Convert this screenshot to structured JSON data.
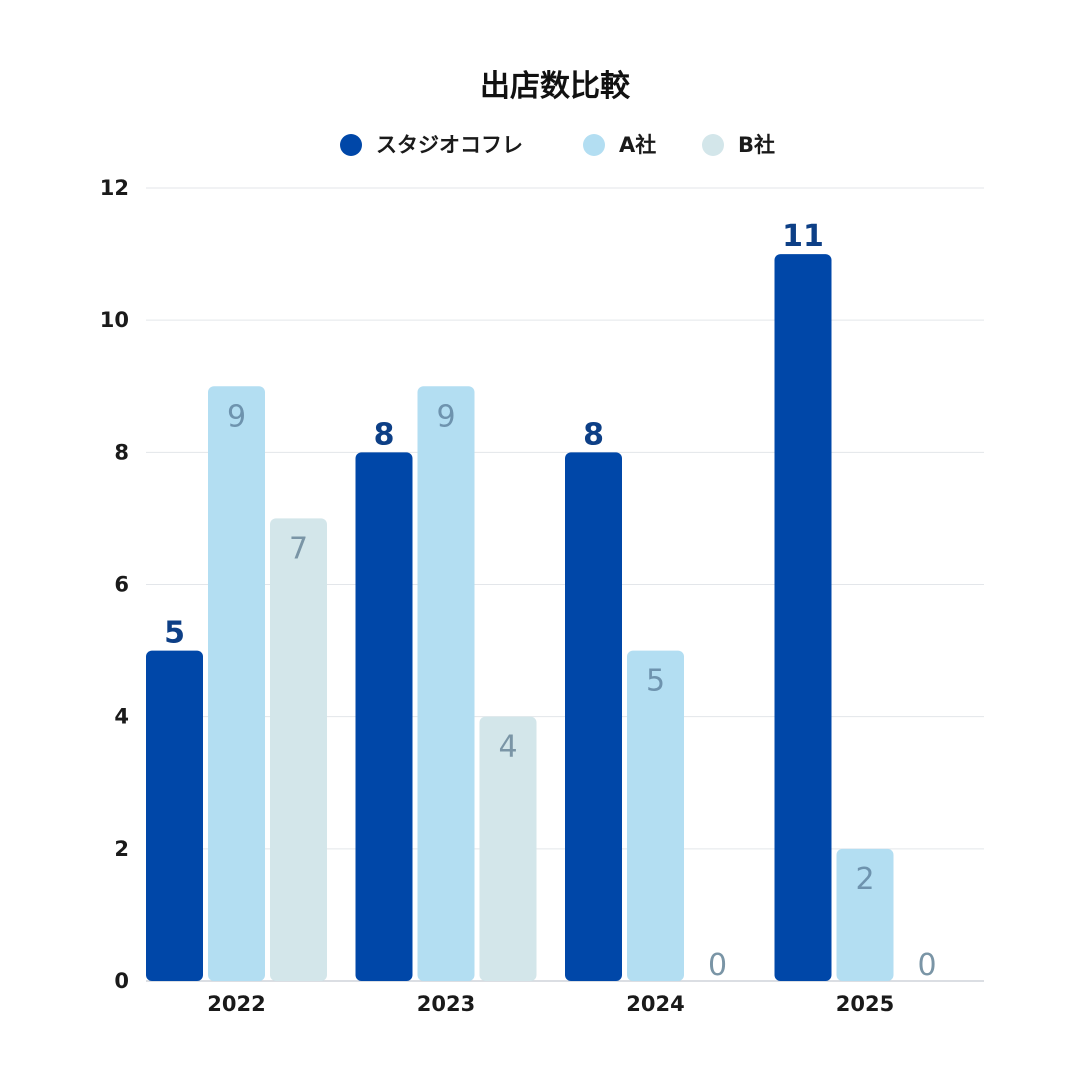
{
  "chart_data": {
    "type": "bar",
    "title": "出店数比較",
    "categories": [
      "2022",
      "2023",
      "2024",
      "2025"
    ],
    "series": [
      {
        "name": "スタジオコフレ",
        "values": [
          5,
          8,
          8,
          11
        ],
        "color": "#0047a8",
        "label_color": "#0d3f86"
      },
      {
        "name": "A社",
        "values": [
          9,
          9,
          5,
          2
        ],
        "color": "#b3def2",
        "label_color": "#6e93ae"
      },
      {
        "name": "B社",
        "values": [
          7,
          4,
          0,
          0
        ],
        "color": "#d3e6ea",
        "label_color": "#7a95a6"
      }
    ],
    "ylim": [
      0,
      12
    ],
    "yticks": [
      0,
      2,
      4,
      6,
      8,
      10,
      12
    ],
    "xlabel": "",
    "ylabel": "",
    "grid": true,
    "legend": "top-center"
  }
}
